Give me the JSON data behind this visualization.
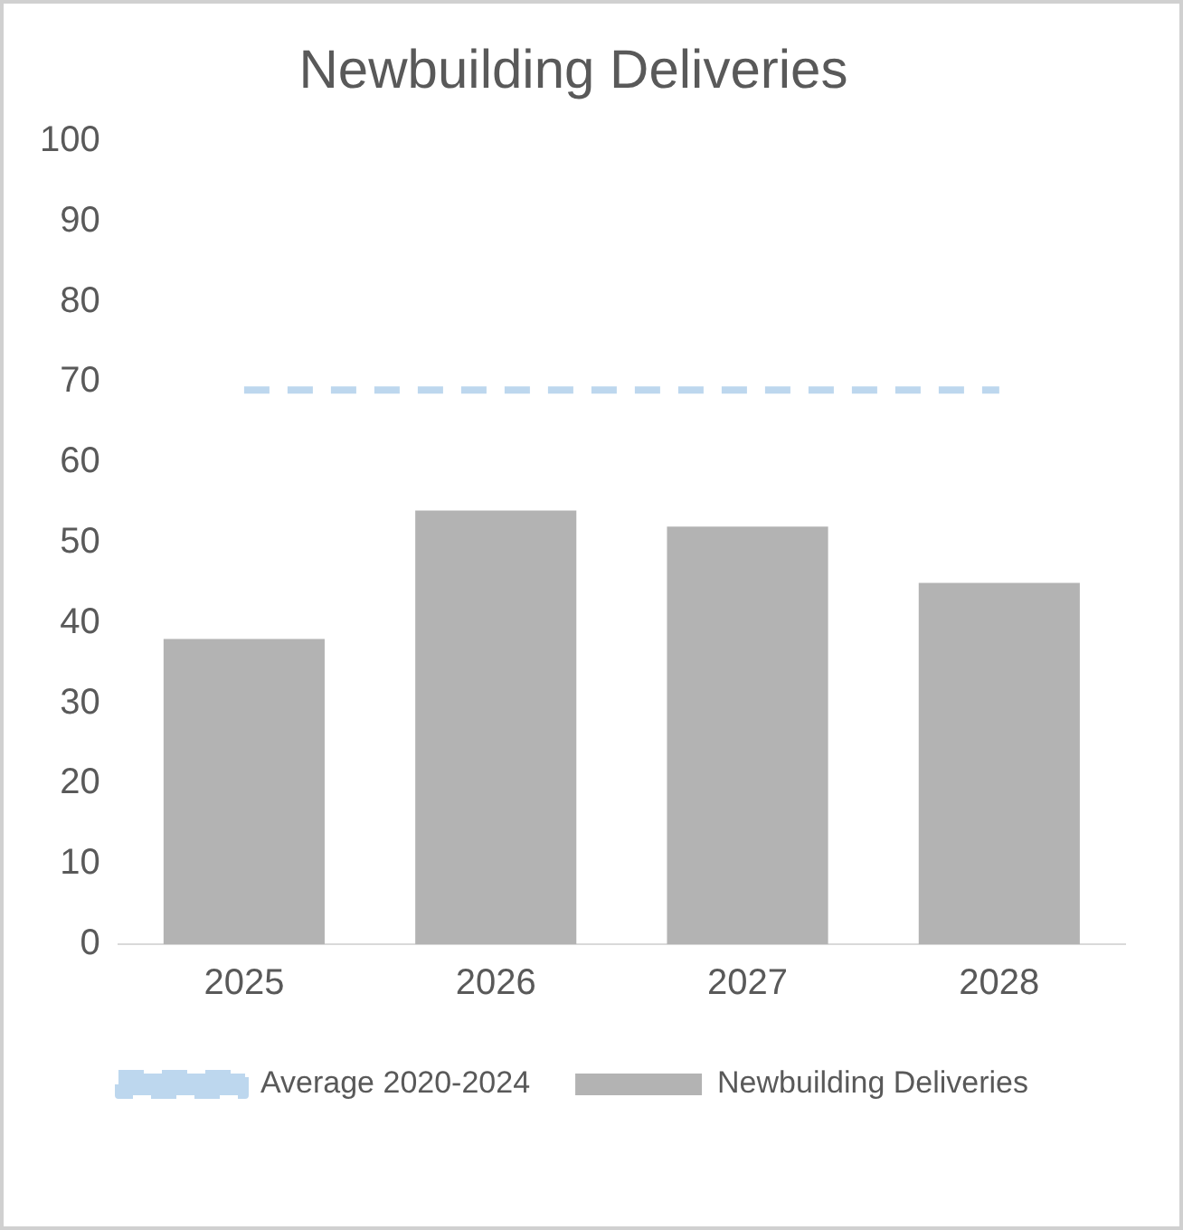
{
  "chart_data": {
    "type": "bar",
    "title": "Newbuilding Deliveries",
    "categories": [
      "2025",
      "2026",
      "2027",
      "2028"
    ],
    "series": [
      {
        "name": "Newbuilding Deliveries",
        "color": "#b3b3b3",
        "values": [
          38,
          54,
          52,
          45
        ]
      },
      {
        "name": "Average 2020-2024",
        "type": "line",
        "color": "#bdd7ee",
        "values": [
          69,
          69,
          69,
          69
        ]
      }
    ],
    "line_style": "dashed",
    "marker": "none",
    "ylim": [
      0,
      100
    ],
    "yticks": [
      0,
      10,
      20,
      30,
      40,
      50,
      60,
      70,
      80,
      90,
      100
    ],
    "grid": false,
    "legend": "bottom"
  }
}
